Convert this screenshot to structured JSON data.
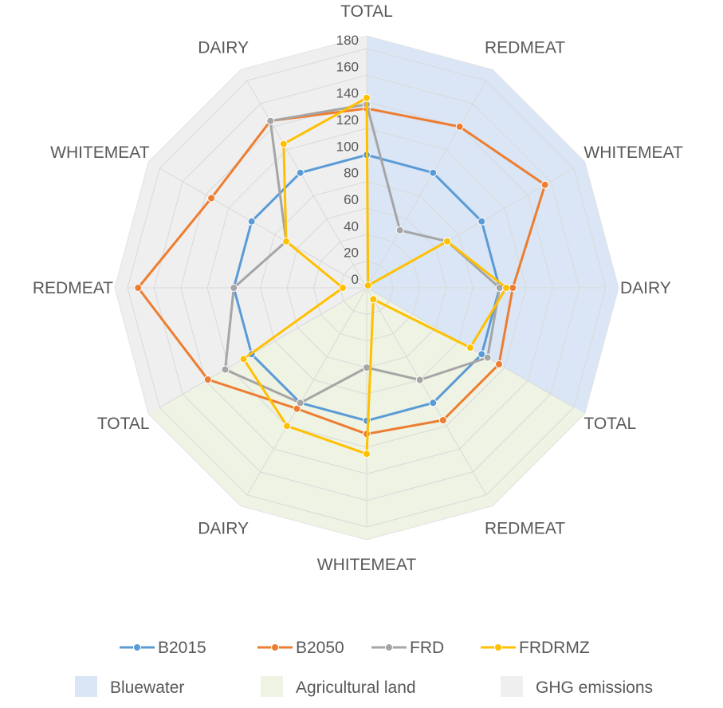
{
  "chart_data": {
    "type": "radar",
    "categories": [
      "TOTAL",
      "REDMEAT",
      "WHITEMEAT",
      "DAIRY",
      "TOTAL",
      "REDMEAT",
      "WHITEMEAT",
      "DAIRY",
      "TOTAL",
      "REDMEAT",
      "WHITEMEAT",
      "DAIRY"
    ],
    "rlim": [
      0,
      180
    ],
    "ticks": [
      0,
      20,
      40,
      60,
      80,
      100,
      120,
      140,
      160,
      180
    ],
    "tick_labels": [
      "0",
      "20",
      "40",
      "60",
      "80",
      "100",
      "120",
      "140",
      "160",
      "180"
    ],
    "grid": true,
    "legend_position": "bottom",
    "series": [
      {
        "name": "B2015",
        "color": "#5b9bd5",
        "values": [
          100,
          100,
          100,
          100,
          100,
          100,
          100,
          100,
          100,
          100,
          100,
          100
        ]
      },
      {
        "name": "B2050",
        "color": "#ed7d31",
        "values": [
          135,
          140,
          155,
          110,
          115,
          115,
          110,
          105,
          138,
          172,
          135,
          145
        ]
      },
      {
        "name": "FRD",
        "color": "#a5a5a5",
        "values": [
          138,
          50,
          70,
          100,
          105,
          80,
          60,
          100,
          123,
          100,
          70,
          145
        ]
      },
      {
        "name": "FRDRMZ",
        "color": "#ffc000",
        "values": [
          143,
          2,
          70,
          105,
          90,
          10,
          125,
          120,
          107,
          18,
          70,
          125
        ]
      }
    ],
    "background_sectors": [
      {
        "name": "Bluewater",
        "color": "#dae6f5",
        "from_axis": 0,
        "to_axis": 4
      },
      {
        "name": "Agricultural land",
        "color": "#eef3e4",
        "from_axis": 4,
        "to_axis": 8
      },
      {
        "name": "GHG emissions",
        "color": "#efefef",
        "from_axis": 8,
        "to_axis": 12
      }
    ],
    "sector_legend": [
      "Bluewater",
      "Agricultural land",
      "GHG emissions"
    ]
  }
}
